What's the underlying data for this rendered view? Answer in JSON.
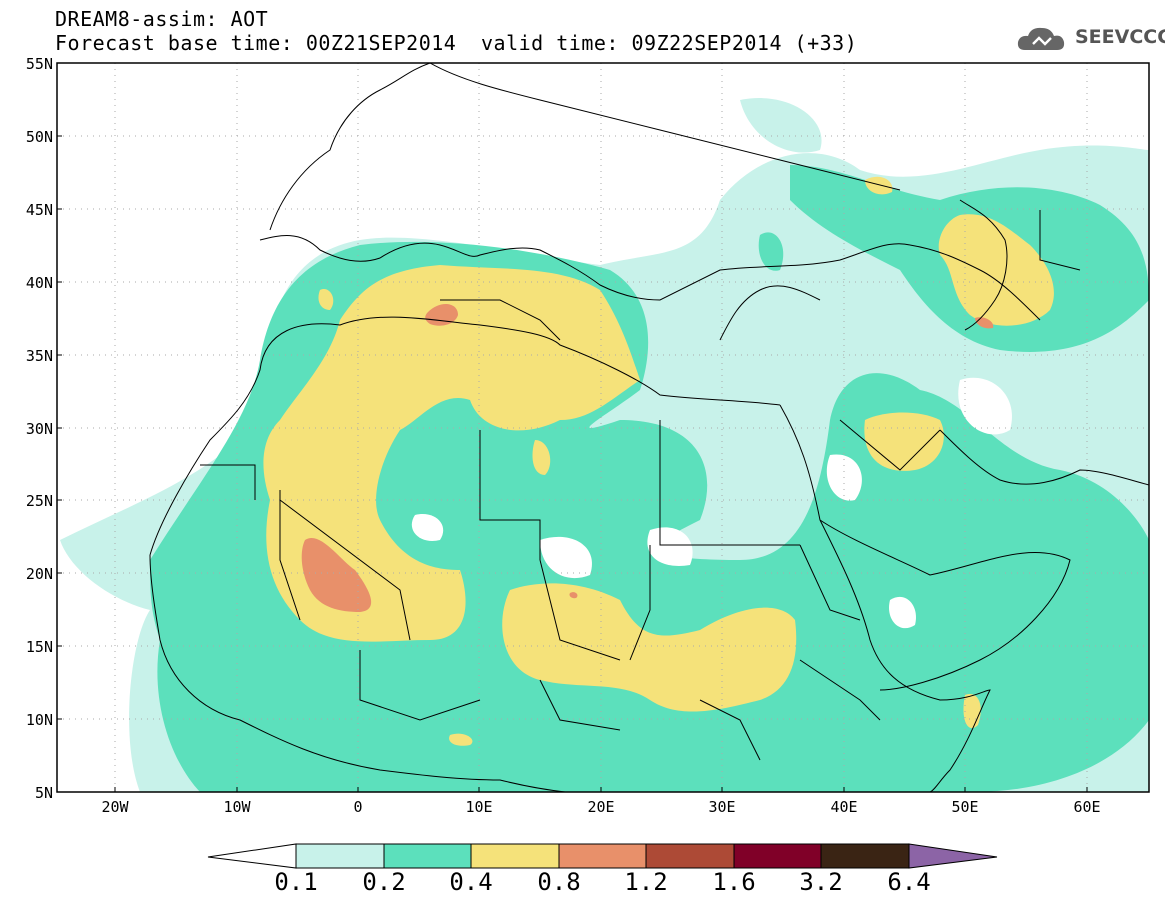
{
  "title": {
    "line1": "DREAM8-assim: AOT",
    "line2": "Forecast base time: 00Z21SEP2014",
    "valid": "valid time: 09Z22SEP2014 (+33)"
  },
  "logo": {
    "text": "SEEVCCC",
    "icon": "cloud-icon",
    "color": "#555555"
  },
  "map_data": {
    "variable": "AOT",
    "lat_range": [
      5,
      55
    ],
    "lon_range": [
      -25,
      65
    ],
    "lat_labels": [
      "55N",
      "50N",
      "45N",
      "40N",
      "35N",
      "30N",
      "25N",
      "20N",
      "15N",
      "10N",
      "5N"
    ],
    "lon_labels": [
      "20W",
      "10W",
      "0",
      "10E",
      "20E",
      "30E",
      "40E",
      "50E",
      "60E"
    ],
    "gridlines": "dotted"
  },
  "colorbar": {
    "levels": [
      "0.1",
      "0.2",
      "0.4",
      "0.8",
      "1.2",
      "1.6",
      "3.2",
      "6.4"
    ],
    "colors": [
      "#ffffff",
      "#c8f2ea",
      "#5ce0bc",
      "#f5e27a",
      "#e8906a",
      "#ad4a36",
      "#800028",
      "#3a2414",
      "#8c64a6"
    ]
  }
}
